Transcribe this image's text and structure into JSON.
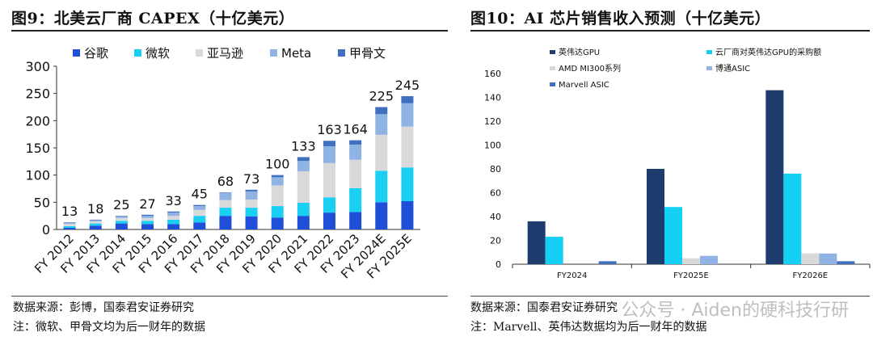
{
  "left": {
    "figure_title": "图9：北美云厂商 CAPEX（十亿美元）",
    "source": "数据来源：彭博，国泰君安证券研究",
    "footnote": "注：微软、甲骨文均为后一财年的数据",
    "chart_data": {
      "type": "bar",
      "stacked": true,
      "title": "北美云厂商 CAPEX（十亿美元）",
      "categories": [
        "FY 2012",
        "FY 2013",
        "FY 2014",
        "FY 2015",
        "FY 2016",
        "FY 2017",
        "FY 2018",
        "FY 2019",
        "FY 2020",
        "FY 2021",
        "FY 2022",
        "FY 2023",
        "FY 2024E",
        "FY 2025E"
      ],
      "series": [
        {
          "name": "谷歌",
          "color": "#1f4fd8",
          "values": [
            3,
            7,
            11,
            10,
            10,
            13,
            25,
            24,
            22,
            25,
            31,
            32,
            50,
            52
          ]
        },
        {
          "name": "微软",
          "color": "#1ad0f2",
          "values": [
            3,
            4,
            5,
            6,
            8,
            12,
            15,
            16,
            21,
            24,
            28,
            44,
            58,
            62
          ]
        },
        {
          "name": "亚马逊",
          "color": "#d9d9d9",
          "values": [
            4,
            4,
            5,
            5,
            7,
            11,
            14,
            15,
            38,
            58,
            63,
            52,
            66,
            75
          ]
        },
        {
          "name": "Meta",
          "color": "#8fb4e3",
          "values": [
            2,
            2,
            3,
            4,
            6,
            7,
            13,
            15,
            15,
            19,
            31,
            28,
            38,
            43
          ]
        },
        {
          "name": "甲骨文",
          "color": "#3f6fbf",
          "values": [
            1,
            1,
            1,
            2,
            2,
            2,
            1,
            3,
            4,
            7,
            10,
            8,
            13,
            13
          ]
        }
      ],
      "totals": [
        13,
        18,
        25,
        27,
        33,
        45,
        68,
        73,
        100,
        133,
        163,
        164,
        225,
        245
      ],
      "ylim": [
        0,
        300
      ],
      "yticks": [
        0,
        50,
        100,
        150,
        200,
        250,
        300
      ],
      "legend_position": "top"
    }
  },
  "right": {
    "figure_title": "图10：AI 芯片销售收入预测（十亿美元）",
    "source": "数据来源：国泰君安证券研究",
    "footnote": "注：Marvell、英伟达数据均为后一财年的数据",
    "watermark": "公众号 · Aiden的硬科技行研",
    "chart_data": {
      "type": "bar",
      "stacked": false,
      "title": "AI 芯片销售收入预测（十亿美元）",
      "categories": [
        "FY2024",
        "FY2025E",
        "FY2026E"
      ],
      "series": [
        {
          "name": "英伟达GPU",
          "color": "#1f3c6e",
          "values": [
            36,
            80,
            146
          ]
        },
        {
          "name": "云厂商对英伟达GPU的采购额",
          "color": "#14d0f5",
          "values": [
            23,
            48,
            76
          ]
        },
        {
          "name": "AMD MI300系列",
          "color": "#d9d9d9",
          "values": [
            0,
            5,
            9
          ]
        },
        {
          "name": "博通ASIC",
          "color": "#8fb4e3",
          "values": [
            0,
            7,
            9
          ]
        },
        {
          "name": "Marvell ASIC",
          "color": "#3f6fbf",
          "values": [
            2.5,
            0,
            2.5
          ]
        }
      ],
      "ylim": [
        0,
        160
      ],
      "yticks": [
        0,
        20,
        40,
        60,
        80,
        100,
        120,
        140,
        160
      ],
      "legend_position": "top"
    }
  }
}
